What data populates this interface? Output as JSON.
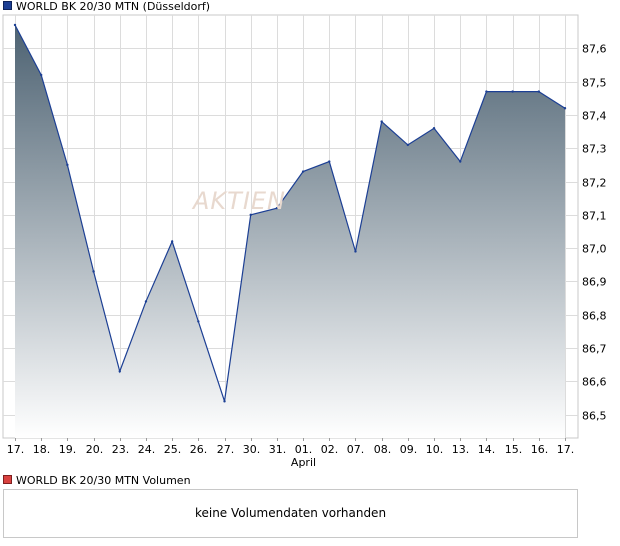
{
  "watermark": "AKTIEN",
  "volume_chart": {
    "legend": "WORLD BK 20/30 MTN Volumen",
    "message": "keine Volumendaten vorhanden",
    "color": "#d9413f"
  },
  "chart_data": {
    "type": "area",
    "series": [
      {
        "name": "WORLD BK 20/30 MTN (Düsseldorf)",
        "color": "#1c3f94",
        "values": [
          87.67,
          87.52,
          87.25,
          86.93,
          86.63,
          86.84,
          87.02,
          86.78,
          86.54,
          87.1,
          87.12,
          87.23,
          87.26,
          86.99,
          87.38,
          87.31,
          87.36,
          87.26,
          87.47,
          87.47,
          87.47,
          87.42
        ]
      }
    ],
    "categories": [
      "17.",
      "18.",
      "19.",
      "20.",
      "23.",
      "24.",
      "25.",
      "26.",
      "27.",
      "30.",
      "31.",
      "01.",
      "02.",
      "07.",
      "08.",
      "09.",
      "10.",
      "13.",
      "14.",
      "15.",
      "16.",
      "17."
    ],
    "month_marker": {
      "index": 11,
      "label": "April"
    },
    "ylim": [
      86.43,
      87.7
    ],
    "yticks": [
      86.5,
      86.6,
      86.7,
      86.8,
      86.9,
      87.0,
      87.1,
      87.2,
      87.3,
      87.4,
      87.5,
      87.6
    ],
    "ytick_labels": [
      "86,5",
      "86,6",
      "86,7",
      "86,8",
      "86,9",
      "87,0",
      "87,1",
      "87,2",
      "87,3",
      "87,4",
      "87,5",
      "87,6"
    ],
    "y_axis_position": "right",
    "grid": true,
    "fill_gradient": [
      "#4d6272",
      "#ffffff"
    ]
  }
}
